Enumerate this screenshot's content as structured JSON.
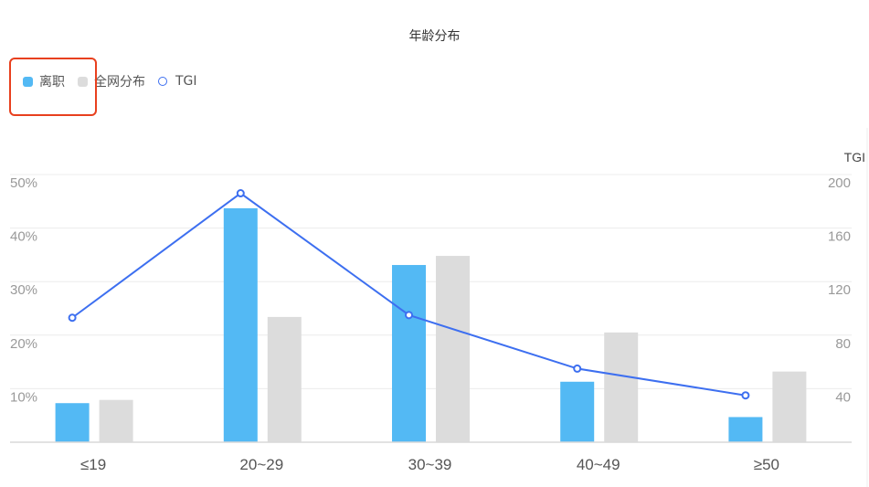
{
  "chart_data": {
    "type": "bar",
    "title": "年龄分布",
    "categories": [
      "≤19",
      "20~29",
      "30~39",
      "40~49",
      "≥50"
    ],
    "series": [
      {
        "name": "离职",
        "type": "bar",
        "axis": "left",
        "color": "#53b9f4",
        "values": [
          7.3,
          43.7,
          33.1,
          11.3,
          4.7
        ]
      },
      {
        "name": "全网分布",
        "type": "bar",
        "axis": "left",
        "color": "#dcdcdc",
        "values": [
          7.9,
          23.4,
          34.8,
          20.5,
          13.2
        ]
      },
      {
        "name": "TGI",
        "type": "line",
        "axis": "right",
        "color": "#3d6ff0",
        "values": [
          93,
          186,
          95,
          55,
          35
        ]
      }
    ],
    "xlabel": "",
    "ylabel": "",
    "y2label": "TGI",
    "ylim": [
      0,
      50
    ],
    "y2lim": [
      0,
      200
    ],
    "yticks": [
      "10%",
      "20%",
      "30%",
      "40%",
      "50%"
    ],
    "y2ticks": [
      "40",
      "80",
      "120",
      "160",
      "200"
    ],
    "grid": true,
    "legend_position": "top-left"
  },
  "legend": {
    "items": [
      {
        "label": "离职",
        "color": "#53b9f4"
      },
      {
        "label": "全网分布",
        "color": "#dcdcdc"
      },
      {
        "label": "TGI",
        "color": "#3d6ff0"
      }
    ]
  },
  "annotation": {
    "highlight_color": "#e8401e",
    "highlighted_item": "离职"
  }
}
